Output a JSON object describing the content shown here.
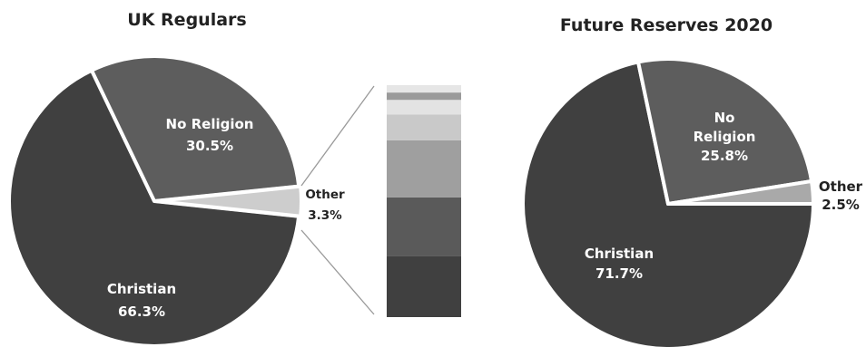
{
  "chart_data": [
    {
      "type": "pie",
      "title": "UK Regulars",
      "slices": [
        {
          "label": "Christian",
          "value": 66.3,
          "display": "66.3%",
          "color": "#404040"
        },
        {
          "label": "No Religion",
          "value": 30.5,
          "display": "30.5%",
          "color": "#5d5d5d"
        },
        {
          "label": "Other",
          "value": 3.3,
          "display": "3.3%",
          "color": "#cdcdcd"
        }
      ],
      "breakdown_of": "Other",
      "breakdown_colors": [
        "#404040",
        "#5a5a5a",
        "#9f9f9f",
        "#c9c9c9",
        "#e3e3e3",
        "#9a9a9a",
        "#e6e6e6"
      ]
    },
    {
      "type": "pie",
      "title": "Future Reserves 2020",
      "slices": [
        {
          "label": "Christian",
          "value": 71.7,
          "display": "71.7%",
          "color": "#404040"
        },
        {
          "label": "No Religion",
          "value": 25.8,
          "display": "25.8%",
          "color": "#5d5d5d"
        },
        {
          "label": "Other",
          "value": 2.5,
          "display": "2.5%",
          "color": "#a9a9a9"
        }
      ]
    }
  ]
}
